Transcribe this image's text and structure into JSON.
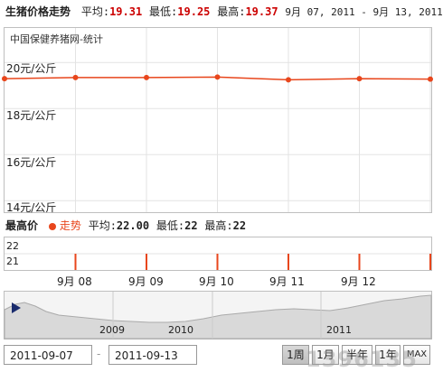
{
  "header": {
    "title": "生猪价格走势",
    "avg_label": "平均:",
    "avg_value": "19.31",
    "min_label": "最低:",
    "min_value": "19.25",
    "max_label": "最高:",
    "max_value": "19.37",
    "range": "9月 07, 2011 - 9月 13, 2011"
  },
  "chart": {
    "source": "中国保健养猪网-统计",
    "y_labels": [
      "20元/公斤",
      "18元/公斤",
      "16元/公斤",
      "14元/公斤"
    ],
    "line_color": "#e8461c"
  },
  "chart_data": {
    "type": "line",
    "x": [
      "2011-09-07",
      "2011-09-08",
      "2011-09-09",
      "2011-09-10",
      "2011-09-11",
      "2011-09-12",
      "2011-09-13"
    ],
    "values": [
      19.3,
      19.35,
      19.35,
      19.37,
      19.25,
      19.3,
      19.28
    ],
    "ylim": [
      13.5,
      21.5
    ],
    "ytick_labels": [
      "20元/公斤",
      "18元/公斤",
      "16元/公斤",
      "14元/公斤"
    ],
    "grid": true
  },
  "volume": {
    "title": "最高价",
    "legend": "走势",
    "avg_label": "平均:",
    "avg_value": "22.00",
    "min_label": "最低:",
    "min_value": "22",
    "max_label": "最高:",
    "max_value": "22",
    "y_labels": [
      "22",
      "21"
    ],
    "bars": [
      22,
      22,
      22,
      22,
      22,
      22,
      22
    ]
  },
  "x_axis": {
    "ticks": [
      "9月 08",
      "9月 09",
      "9月 10",
      "9月 11",
      "9月 12"
    ]
  },
  "navigator": {
    "years": [
      "2009",
      "2010",
      "2011"
    ]
  },
  "controls": {
    "start_date": "2011-09-07",
    "separator": "-",
    "end_date": "2011-09-13",
    "ranges": [
      "1周",
      "1月",
      "半年",
      "1年",
      "MAX"
    ],
    "active": "1周"
  },
  "watermark": "1396135"
}
